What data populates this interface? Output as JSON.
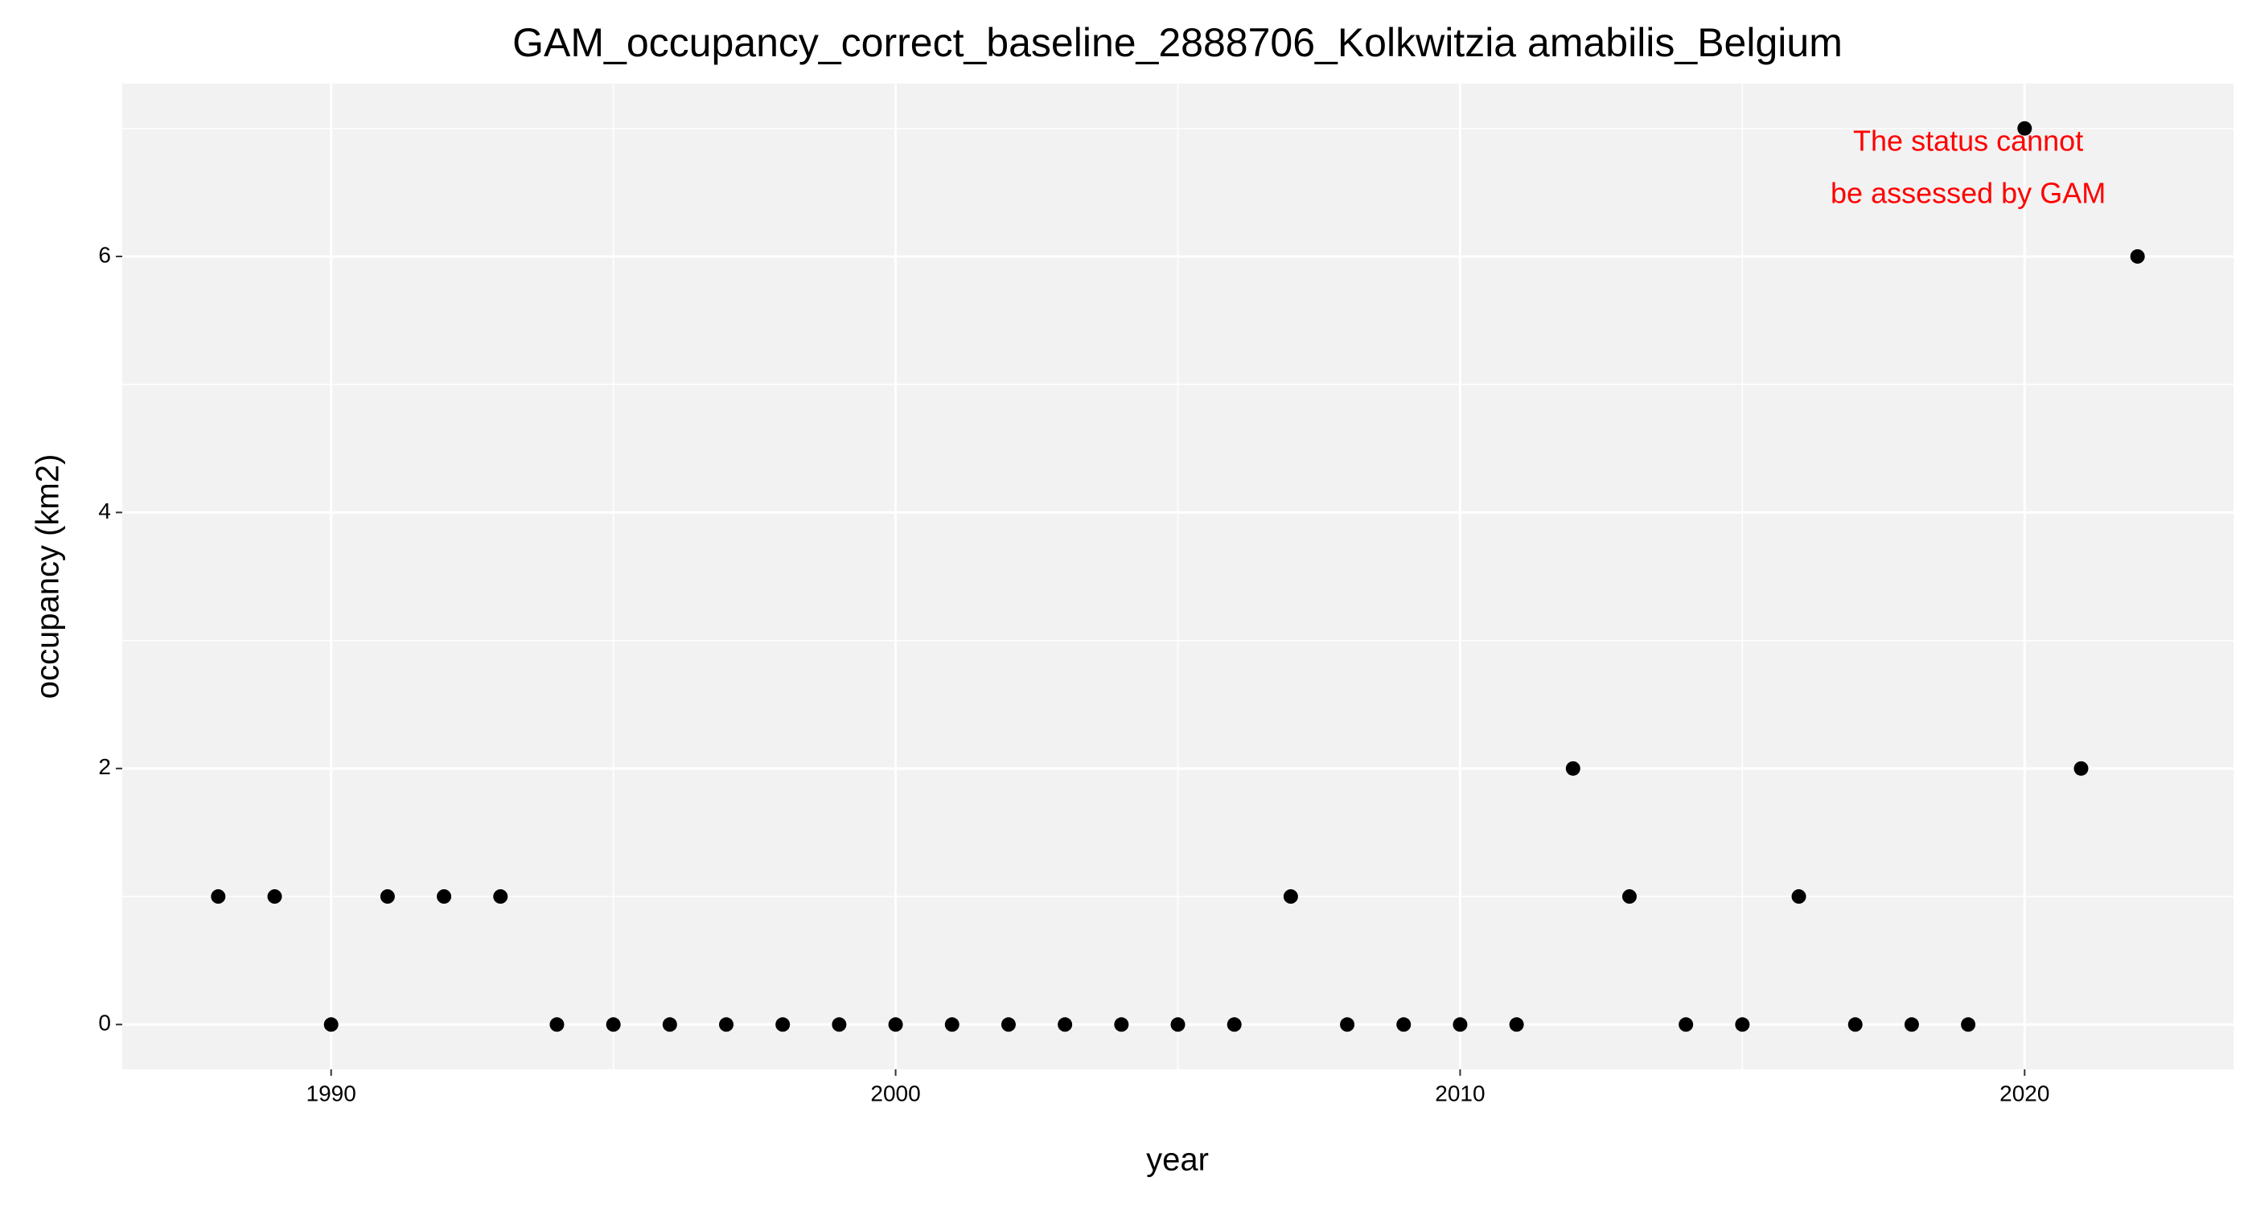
{
  "chart_data": {
    "type": "scatter",
    "title": "GAM_occupancy_correct_baseline_2888706_Kolkwitzia amabilis_Belgium",
    "x_label": "year",
    "y_label": "occupancy (km2)",
    "x": [
      1988,
      1989,
      1990,
      1991,
      1992,
      1993,
      1994,
      1995,
      1996,
      1997,
      1998,
      1999,
      2000,
      2001,
      2002,
      2003,
      2004,
      2005,
      2006,
      2007,
      2008,
      2009,
      2010,
      2011,
      2012,
      2013,
      2014,
      2015,
      2016,
      2017,
      2018,
      2019,
      2020,
      2021,
      2022
    ],
    "values": [
      1,
      1,
      0,
      1,
      1,
      1,
      0,
      0,
      0,
      0,
      0,
      0,
      0,
      0,
      0,
      0,
      0,
      0,
      0,
      1,
      0,
      0,
      0,
      0,
      2,
      1,
      0,
      0,
      1,
      0,
      0,
      0,
      7,
      2,
      6
    ],
    "color": "#000000",
    "xlim": [
      1986.3,
      2023.7
    ],
    "ylim": [
      -0.35,
      7.35
    ],
    "xticks": [
      1990,
      2000,
      2010,
      2020
    ],
    "yticks": [
      0,
      2,
      4,
      6
    ],
    "x_minor_grid": [
      1995,
      2005,
      2015
    ],
    "y_minor_grid": [
      1,
      3,
      5,
      7
    ],
    "grid": true,
    "annotation": {
      "lines": [
        "The status cannot",
        "be assessed by GAM"
      ],
      "color": "#ff0000",
      "x": 2019
    }
  }
}
